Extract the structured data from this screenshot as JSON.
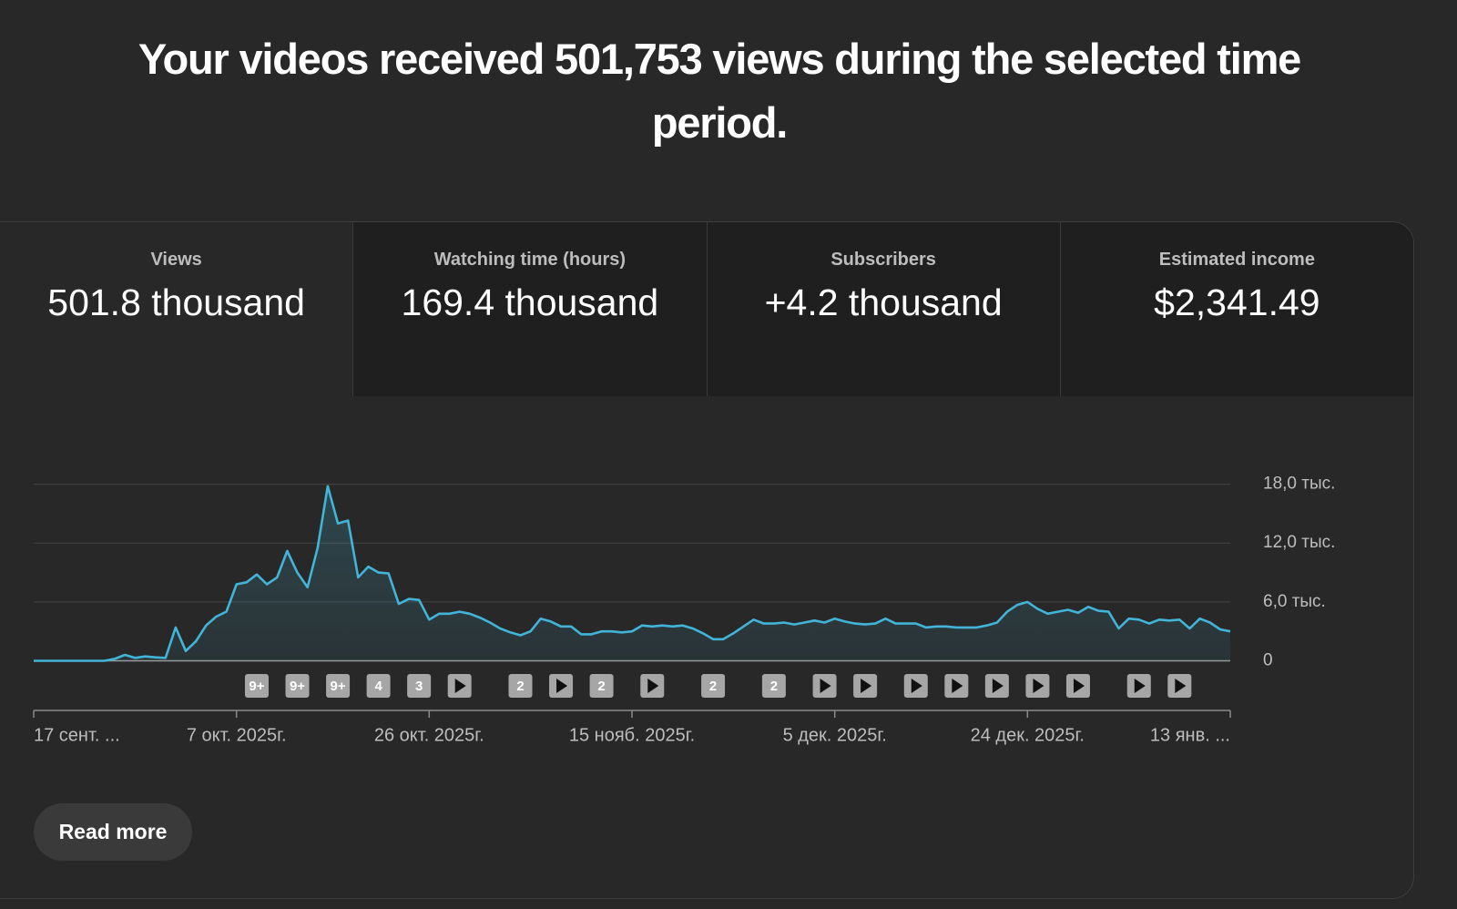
{
  "header": {
    "title": "Your videos received 501,753 views during the selected time period."
  },
  "tabs": [
    {
      "label": "Views",
      "value": "501.8 thousand"
    },
    {
      "label": "Watching time (hours)",
      "value": "169.4 thousand"
    },
    {
      "label": "Subscribers",
      "value": "+4.2 thousand"
    },
    {
      "label": "Estimated income",
      "value": "$2,341.49"
    }
  ],
  "chart_data": {
    "type": "line",
    "color": "#41b4d8",
    "values": [
      0,
      0,
      0,
      0,
      0,
      0,
      0,
      0,
      200,
      600,
      300,
      450,
      350,
      300,
      3400,
      1000,
      2000,
      3600,
      4500,
      5000,
      7800,
      8000,
      8800,
      7800,
      8500,
      11200,
      9000,
      7500,
      11500,
      17800,
      14000,
      14300,
      8500,
      9600,
      9000,
      8900,
      5800,
      6300,
      6200,
      4200,
      4800,
      4800,
      5000,
      4800,
      4400,
      3900,
      3300,
      2900,
      2600,
      3000,
      4300,
      4000,
      3500,
      3500,
      2700,
      2700,
      3000,
      3000,
      2900,
      3000,
      3600,
      3500,
      3600,
      3500,
      3600,
      3300,
      2800,
      2200,
      2200,
      2800,
      3500,
      4200,
      3800,
      3800,
      3900,
      3700,
      3900,
      4100,
      3900,
      4300,
      4000,
      3800,
      3700,
      3800,
      4300,
      3800,
      3800,
      3800,
      3400,
      3500,
      3500,
      3400,
      3400,
      3400,
      3600,
      3900,
      5000,
      5700,
      6000,
      5300,
      4800,
      5000,
      5200,
      4900,
      5500,
      5100,
      5000,
      3300,
      4300,
      4200,
      3800,
      4200,
      4100,
      4200,
      3300,
      4300,
      3900,
      3200,
      3000
    ],
    "ylim": [
      0,
      18000
    ],
    "yticks": [
      0,
      {
        "value": 6000,
        "label": "6,0 тыс."
      },
      {
        "value": 12000,
        "label": "12,0 тыс."
      },
      {
        "value": 18000,
        "label": "18,0 тыс."
      }
    ],
    "xticks": [
      {
        "value": 0,
        "label": "17 сент. ..."
      },
      {
        "value": 20,
        "label": "7 окт. 2025г."
      },
      {
        "value": 39,
        "label": "26 окт. 2025г."
      },
      {
        "value": 59,
        "label": "15 нояб. 2025г."
      },
      {
        "value": 79,
        "label": "5 дек. 2025г."
      },
      {
        "value": 98,
        "label": "24 дек. 2025г."
      },
      {
        "value": 118,
        "label": "13 янв. ..."
      }
    ],
    "grid": true,
    "markers": [
      {
        "x": 22,
        "label": "9+"
      },
      {
        "x": 26,
        "label": "9+"
      },
      {
        "x": 30,
        "label": "9+"
      },
      {
        "x": 34,
        "label": "4"
      },
      {
        "x": 38,
        "label": "3"
      },
      {
        "x": 42,
        "label": null
      },
      {
        "x": 48,
        "label": "2"
      },
      {
        "x": 52,
        "label": null
      },
      {
        "x": 56,
        "label": "2"
      },
      {
        "x": 61,
        "label": null
      },
      {
        "x": 67,
        "label": "2"
      },
      {
        "x": 73,
        "label": "2"
      },
      {
        "x": 78,
        "label": null
      },
      {
        "x": 82,
        "label": null
      },
      {
        "x": 87,
        "label": null
      },
      {
        "x": 91,
        "label": null
      },
      {
        "x": 95,
        "label": null
      },
      {
        "x": 99,
        "label": null
      },
      {
        "x": 103,
        "label": null
      },
      {
        "x": 109,
        "label": null
      },
      {
        "x": 113,
        "label": null
      }
    ]
  },
  "read_more": "Read more"
}
